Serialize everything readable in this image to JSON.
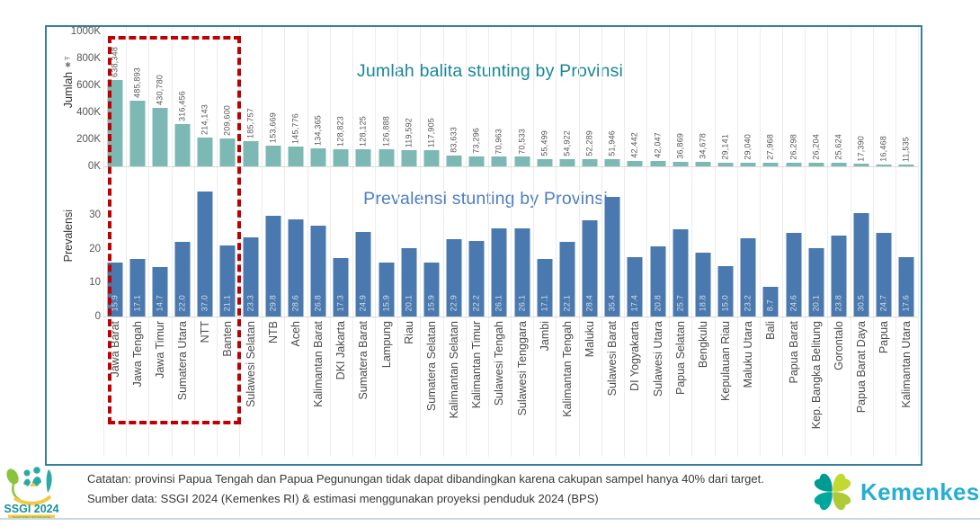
{
  "chart_data": {
    "type": "bar",
    "title_top": "Jumlah balita stunting by Provinsi",
    "title_bottom": "Prevalensi stunting by Provinsi",
    "categories": [
      "Jawa Barat",
      "Jawa Tengah",
      "Jawa Timur",
      "Sumatera Utara",
      "NTT",
      "Banten",
      "Sulawesi Selatan",
      "NTB",
      "Aceh",
      "Kalimantan Barat",
      "DKI Jakarta",
      "Sumatera Barat",
      "Lampung",
      "Riau",
      "Sumatera Selatan",
      "Kalimantan Selatan",
      "Kalimantan Timur",
      "Sulawesi Tengah",
      "Sulawesi Tenggara",
      "Jambi",
      "Kalimantan Tengah",
      "Maluku",
      "Sulawesi Barat",
      "DI Yogyakarta",
      "Sulawesi Utara",
      "Papua Selatan",
      "Bengkulu",
      "Kepulauan Riau",
      "Maluku Utara",
      "Bali",
      "Papua Barat",
      "Kep. Bangka Belitung",
      "Gorontalo",
      "Papua Barat Daya",
      "Papua",
      "Kalimantan Utara"
    ],
    "series": [
      {
        "name": "Jumlah balita stunting",
        "values": [
          638348,
          485893,
          430780,
          316456,
          214143,
          209600,
          185757,
          153669,
          145776,
          134365,
          128823,
          128125,
          126888,
          119592,
          117905,
          83633,
          73296,
          70963,
          70533,
          55499,
          54922,
          52289,
          51946,
          42442,
          42047,
          36869,
          34678,
          29141,
          29040,
          27968,
          26298,
          26204,
          25624,
          17390,
          16468,
          11535
        ]
      },
      {
        "name": "Prevalensi stunting",
        "values": [
          "15.9",
          "17.1",
          "14.7",
          "22.0",
          "37.0",
          "21.1",
          "23.3",
          "29.8",
          "28.6",
          "26.8",
          "17.3",
          "24.9",
          "15.9",
          "20.1",
          "15.9",
          "22.9",
          "22.2",
          "26.1",
          "26.1",
          "17.1",
          "22.1",
          "28.4",
          "35.4",
          "17.4",
          "20.8",
          "25.7",
          "18.8",
          "15.0",
          "23.2",
          "8.7",
          "24.6",
          "20.1",
          "23.8",
          "30.5",
          "24.7",
          "17.6"
        ]
      }
    ],
    "top_axis": {
      "label": "Jumlah",
      "label_glyphs": "✱Ŧ",
      "ticks": [
        "1000K",
        "800K",
        "600K",
        "400K",
        "200K",
        "0K"
      ],
      "max": 1000000
    },
    "bottom_axis": {
      "label": "Prevalensi",
      "ticks": [
        "30",
        "20",
        "10",
        "0"
      ],
      "max_shown": 30
    },
    "highlight": {
      "first_n_provinces": 6
    },
    "layout": {
      "grid": "vertical",
      "legend": "none"
    },
    "colors": {
      "jumlah_bar": "#7cb9b4",
      "prevalensi_bar": "#4a79af",
      "title_top": "#17879a",
      "title_bottom": "#4d7ec4",
      "frame_border": "#35809c",
      "highlight_box": "#c00000"
    }
  },
  "footer": {
    "note_line1": "Catatan: provinsi Papua Tengah dan Papua Pegunungan tidak dapat dibandingkan karena cakupan sampel hanya 40% dari target.",
    "note_line2": "Sumber data: SSGI 2024 (Kemenkes RI) & estimasi menggunakan proyeksi penduduk 2024 (BPS)",
    "ssgi_logo_text": "SSGI 2024",
    "ssgi_logo_subtext": "Survei Status Gizi Indonesia",
    "kemenkes_logo_text": "Kemenkes"
  }
}
